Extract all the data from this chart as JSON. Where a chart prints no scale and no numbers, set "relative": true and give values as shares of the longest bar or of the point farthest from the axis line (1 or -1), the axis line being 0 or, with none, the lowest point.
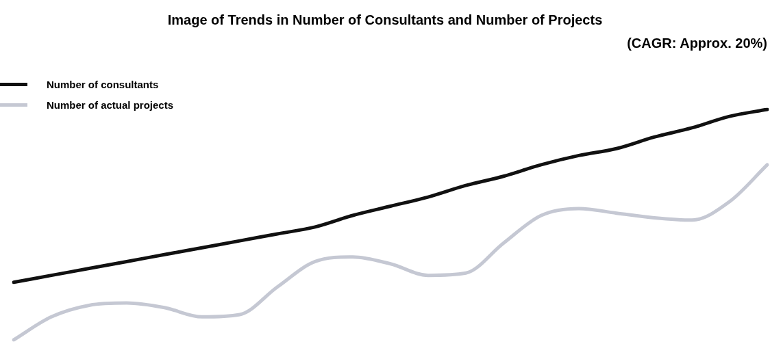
{
  "chart_data": {
    "type": "line",
    "title": "Image of Trends in Number of Consultants and Number of Projects",
    "subtitle": "(CAGR: Approx. 20%)",
    "relative": true,
    "legend": "top left",
    "marker": "none",
    "line_style": "solid",
    "categories": [
      null,
      null,
      null,
      null,
      null,
      null,
      null,
      null,
      null,
      null,
      null,
      null,
      null,
      null,
      null,
      null,
      null,
      null,
      null,
      null,
      null
    ],
    "series": [
      {
        "name": "Number of consultants",
        "color": "#111111",
        "values": [
          0.25,
          0.28,
          0.31,
          0.34,
          0.37,
          0.4,
          0.43,
          0.46,
          0.49,
          0.54,
          0.58,
          0.62,
          0.67,
          0.71,
          0.76,
          0.8,
          0.83,
          0.88,
          0.92,
          0.97,
          1
        ]
      },
      {
        "name": "Number of actual projects",
        "color": "#c5c8d3",
        "values": [
          0,
          0.1,
          0.15,
          0.16,
          0.14,
          0.1,
          0.11,
          0.23,
          0.34,
          0.36,
          0.33,
          0.28,
          0.29,
          0.42,
          0.54,
          0.57,
          0.55,
          0.53,
          0.52,
          0.6,
          0.76
        ]
      }
    ]
  }
}
